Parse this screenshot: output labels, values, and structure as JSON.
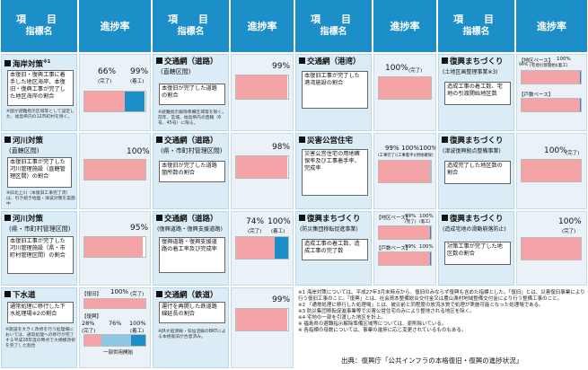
{
  "header": {
    "item_line1": "項　目",
    "item_line2": "指標名",
    "rate_label": "進捗率"
  },
  "colors": {
    "header_bg": "#1c8fc9",
    "bar_pink": "#f4a3a6",
    "bar_blue": "#1c8fc9",
    "cell_bg": "#dcecf6"
  },
  "items": {
    "coast": {
      "title": "海岸対策",
      "title_sup": "※1",
      "desc": "本復旧・復興工事に着手した地区海岸、本復旧・復興工事が完了した地区海岸の割合",
      "note": "※国が避難指示区域等として設定した、福島県内の12市町村を除く。",
      "pct_done": "66%",
      "pct_done_label": "(完了)",
      "pct_start": "99%",
      "pct_start_label": "(着工)",
      "done": 66,
      "started": 99
    },
    "river_direct": {
      "title": "河川対策",
      "subtitle": "(直轄区間)",
      "desc": "本復旧工事が完了した河川管理施設（直轄管理区間）の割合",
      "note": "※旧北上川（本復旧工事完了済）は、引き続き地盤・津波対策を実施中",
      "pct": "100%",
      "value": 100
    },
    "river_pref": {
      "title": "河川対策",
      "subtitle": "(県・市町村管理区間)",
      "desc": "本復旧工事が完了した河川管理施設（県・市町村管理区間）の割合",
      "pct": "95%",
      "value": 95
    },
    "sewer": {
      "title": "下水道",
      "desc": "通常処理に移行した下水処理場※2の割合",
      "legend_restore": "【復旧】",
      "pct_restore": "100%",
      "pct_restore_label": "(完了)",
      "legend_recon": "【復興】",
      "pct_recon_done": "28%",
      "pct_recon_done_label": "(完了)",
      "pct_recon_mid": "76%",
      "pct_recon_mid_label": "一部供用開始",
      "pct_recon_all": "100%",
      "pct_recon_all_label": "(着工)",
      "restore": 100,
      "recon_done": 28,
      "recon_mid": 76,
      "recon_start": 100,
      "note": "※施設を大きく改修を行う処理場においては、通常処理への移行が完了する平成28年度の時点で大規模改修を完了した割合"
    },
    "road_direct": {
      "title": "交通網（道路）",
      "subtitle": "(直轄区間)",
      "desc": "本復旧が完了した道路の割合",
      "note": "※避難指示解除準備区域等を除く。前年、宮城、福島県内の直轄（6号、45号）に限る。",
      "pct": "99%",
      "value": 99
    },
    "road_pref": {
      "title": "交通網（道路）",
      "subtitle": "(県・市町村管理区間)",
      "desc": "本復旧が完了した道路箇所数の割合",
      "pct": "98%",
      "value": 98
    },
    "road_recon": {
      "title": "交通網（道路）",
      "subtitle": "(復興道路・復興支援道路)",
      "desc": "復興道路・復興支援道路の着工率及び完成率",
      "pct_done": "74%",
      "pct_done_label": "(完了)",
      "pct_start": "100%",
      "pct_start_label": "(着工)",
      "done": 74,
      "started": 100
    },
    "rail": {
      "title": "交通網（鉄道）",
      "desc": "運行を再開した鉄道路線延長の割合",
      "note": "※JR大船渡線・気仙沼線のBRTによる本格復旧が合意済み。",
      "pct": "99%",
      "value": 99
    },
    "port": {
      "title": "交通網（港湾）",
      "desc": "本復旧工事が完了した港湾施設の割合",
      "pct": "100%",
      "pct_label": "(完了)",
      "value": 100
    },
    "disaster_housing": {
      "title": "災害公営住宅",
      "desc": "災害公営住宅の用地確保率及び工事着手率、完成率",
      "pct1": "99%",
      "pct2": "100%",
      "pct3": "100%",
      "legend": "(工事完了)(工事着手)(用地確保)",
      "v1": 99,
      "v2": 100,
      "v3": 100
    },
    "town_collective": {
      "title": "復興まちづくり",
      "subtitle": "(防災集団移転促進事業)",
      "desc": "造成工事の着工数、造成工事の完了数",
      "legend_land": "【地区ベース】",
      "legend_house": "【戸数ベース】",
      "pct_a": "99%",
      "pct_a_label": "(完了)",
      "pct_b": "100%",
      "pct_b_label": "(着工)",
      "pct_c": "99%",
      "pct_d": "100%",
      "va": 99,
      "vb": 100,
      "vc": 99,
      "vd": 100
    },
    "town_land": {
      "title": "復興まちづくり",
      "subtitle": "(土地区画整理事業※3)",
      "desc": "造成工事の着工数、宅地の引渡開始地区数",
      "legend_land": "【地区ベース】",
      "legend_house": "【戸数ベース】",
      "pct_a": "99%",
      "pct_a_label": "(宅地引渡開始)",
      "pct_b": "100%",
      "pct_b_label": "(着工)",
      "va": 99,
      "vb": 100
    },
    "town_tsunami": {
      "title": "復興まちづくり",
      "subtitle": "(津波復興拠点整備事業)",
      "desc": "造成完了した地区数の割合",
      "pct": "100%",
      "pct_label": "(完了)",
      "value": 100
    },
    "town_landslide": {
      "title": "復興まちづくり",
      "subtitle": "(造成宅地の滑動崩落防止)",
      "desc": "対策工事が完了した地区数の割合",
      "pct": "100%",
      "pct_label": "(完了)",
      "value": 100
    }
  },
  "footnotes": [
    "※1 海岸対策については、平成27年3月末時点から、復旧のみならず復興も含めた指標とした。「復旧」とは、災害復旧事業により行う復旧工事のこと。「復興」とは、社会資本整備総合交付金又は農山漁村地域整備交付金により行う整備工事のこと。",
    "※2 「通常処理に移行した処理場」とは、被災前と同程度の放流水質で処理が実施可能となった処理場である。",
    "※3 防災集団移転促進事業等で災害公営住宅のみにより整地される地区を除く。",
    "※4 宅地の一部を引渡した地区を計上。",
    "※ 福島県の避難指示解除準備区域等については、原則除いている。",
    "※ 各指標の母数については、事業の進捗に応じ変更されているものもある。"
  ],
  "source": "出典：復興庁「公共インフラの本格復旧・復興の進捗状況」"
}
